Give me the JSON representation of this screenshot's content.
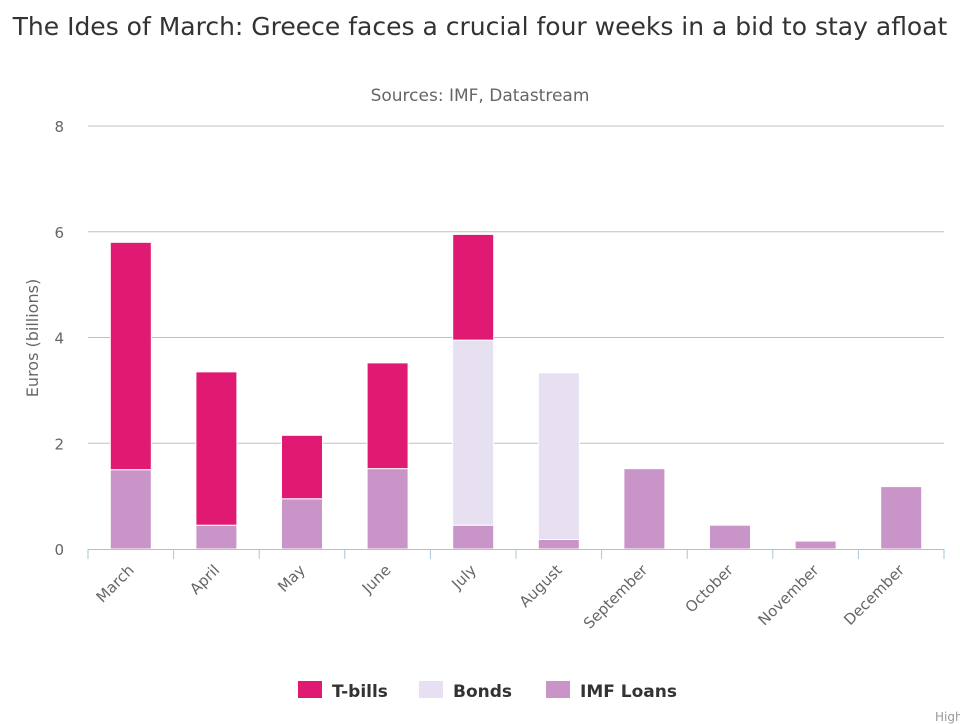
{
  "chart_data": {
    "type": "bar",
    "stacked": true,
    "title": "The Ides of March: Greece faces a crucial four weeks in a bid to stay afloat",
    "subtitle": "Sources: IMF, Datastream",
    "xlabel": "",
    "ylabel": "Euros (billions)",
    "ylim": [
      0,
      8
    ],
    "yticks": [
      0,
      2,
      4,
      6,
      8
    ],
    "grid": true,
    "legend_position": "bottom",
    "categories": [
      "March",
      "April",
      "May",
      "June",
      "July",
      "August",
      "September",
      "October",
      "November",
      "December"
    ],
    "series": [
      {
        "name": "T-bills",
        "color": "#e01a73",
        "values": [
          4.3,
          2.9,
          1.2,
          2.0,
          2.0,
          0,
          0,
          0,
          0,
          0
        ]
      },
      {
        "name": "Bonds",
        "color": "#e6e0f0",
        "values": [
          0,
          0,
          0,
          0,
          3.5,
          3.15,
          0,
          0,
          0,
          0
        ]
      },
      {
        "name": "IMF Loans",
        "color": "#c994c7",
        "values": [
          1.5,
          0.45,
          0.95,
          1.52,
          0.45,
          0.18,
          1.52,
          0.45,
          0.15,
          1.18
        ]
      }
    ],
    "credit": "Highcharts"
  }
}
